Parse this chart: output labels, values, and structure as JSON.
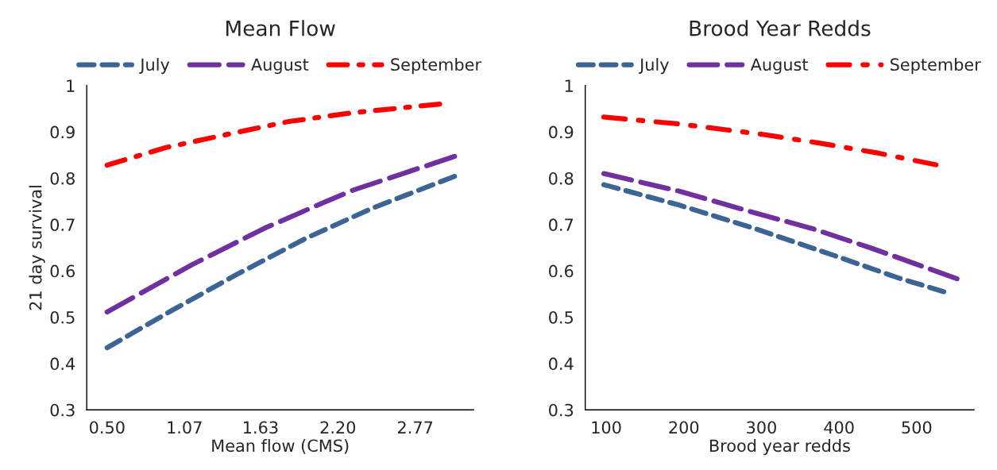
{
  "chart_data": [
    {
      "type": "line",
      "title": "Mean Flow",
      "xlabel": "Mean flow (CMS)",
      "ylabel": "21 day survival",
      "xlim": [
        0.35,
        3.2
      ],
      "xticks": [
        {
          "value": 0.5,
          "label": "0.50"
        },
        {
          "value": 1.07,
          "label": "1.07"
        },
        {
          "value": 1.63,
          "label": "1.63"
        },
        {
          "value": 2.2,
          "label": "2.20"
        },
        {
          "value": 2.77,
          "label": "2.77"
        }
      ],
      "ylim": [
        0.3,
        1
      ],
      "yticks": [
        0.3,
        0.4,
        0.5,
        0.6,
        0.7,
        0.8,
        0.9,
        1
      ],
      "grid": false,
      "legend": "top",
      "series": [
        {
          "name": "July",
          "color": "#3b6595",
          "line_style": "dashed",
          "x": [
            0.5,
            0.98,
            1.46,
            1.97,
            2.46,
            3.06
          ],
          "values": [
            0.434,
            0.515,
            0.593,
            0.671,
            0.736,
            0.804
          ]
        },
        {
          "name": "August",
          "color": "#7030a0",
          "line_style": "longdash",
          "x": [
            0.5,
            1.13,
            1.66,
            2.06,
            2.31,
            3.06
          ],
          "values": [
            0.511,
            0.614,
            0.692,
            0.743,
            0.774,
            0.847
          ]
        },
        {
          "name": "September",
          "color": "#ff0000",
          "line_style": "dashdot",
          "x": [
            0.5,
            0.93,
            1.36,
            1.83,
            2.3,
            2.95
          ],
          "values": [
            0.828,
            0.866,
            0.893,
            0.922,
            0.941,
            0.96
          ]
        }
      ]
    },
    {
      "type": "line",
      "title": "Brood Year Redds",
      "xlabel": "Brood year redds",
      "xlim": [
        73,
        574
      ],
      "xticks": [
        100,
        200,
        300,
        400,
        500
      ],
      "ylim": [
        0.3,
        1
      ],
      "yticks": [
        0.3,
        0.4,
        0.5,
        0.6,
        0.7,
        0.8,
        0.9,
        1
      ],
      "grid": false,
      "legend": "top",
      "series": [
        {
          "name": "July",
          "color": "#3b6595",
          "line_style": "dashed",
          "x": [
            97,
            194,
            292,
            394,
            476,
            535
          ],
          "values": [
            0.786,
            0.742,
            0.691,
            0.633,
            0.585,
            0.555
          ]
        },
        {
          "name": "August",
          "color": "#7030a0",
          "line_style": "longdash",
          "x": [
            97,
            194,
            292,
            366,
            440,
            552
          ],
          "values": [
            0.81,
            0.772,
            0.725,
            0.691,
            0.65,
            0.583
          ]
        },
        {
          "name": "September",
          "color": "#ff0000",
          "line_style": "dashdot",
          "x": [
            97,
            194,
            300,
            374,
            451,
            525
          ],
          "values": [
            0.932,
            0.917,
            0.895,
            0.876,
            0.854,
            0.829
          ]
        }
      ]
    }
  ]
}
